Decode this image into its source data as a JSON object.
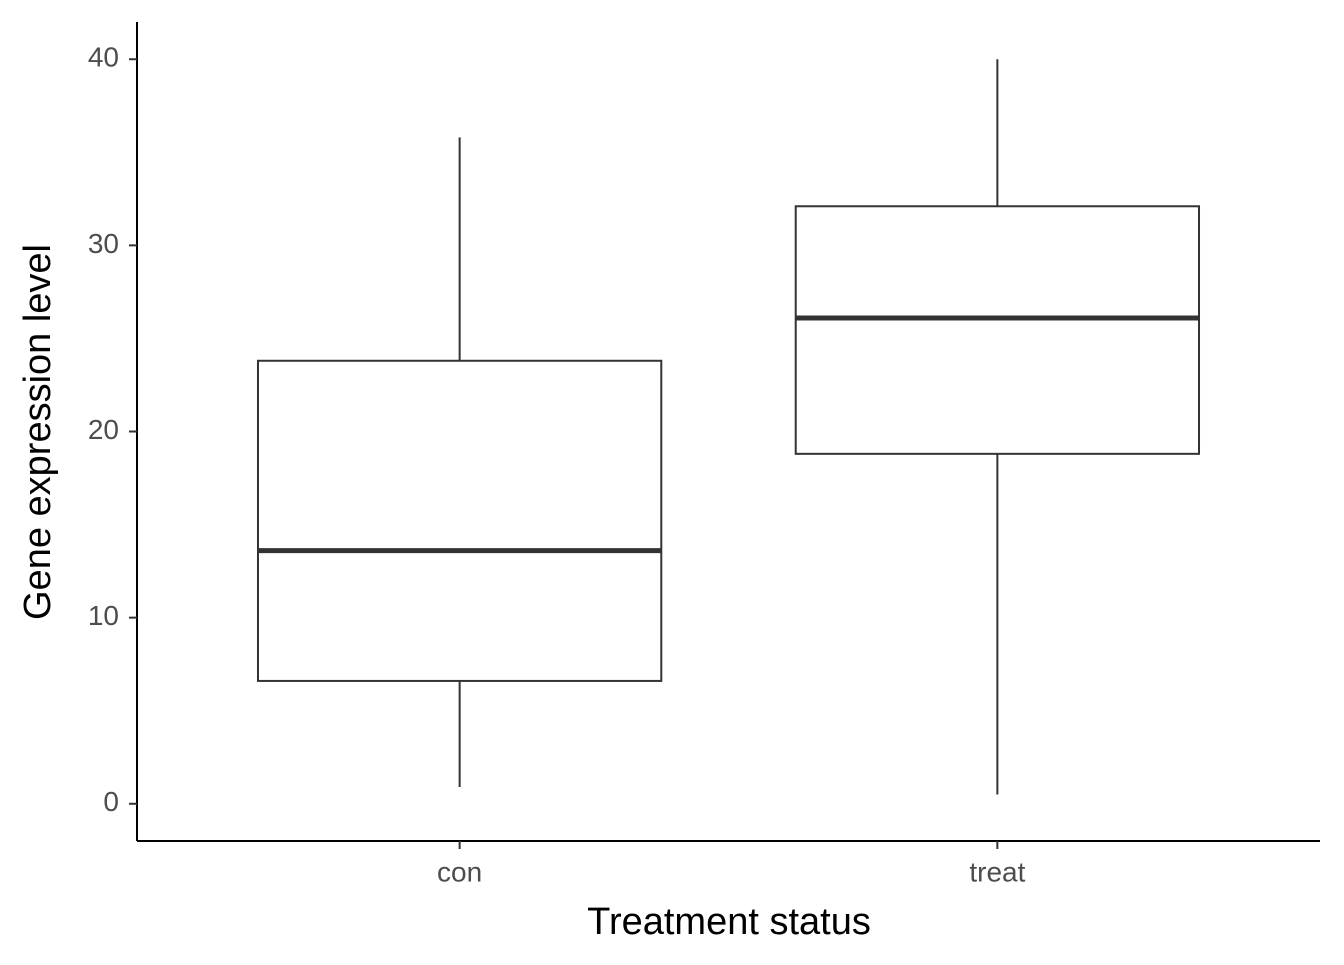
{
  "chart_data": {
    "type": "box",
    "x_label": "Treatment status",
    "y_label": "Gene expression level",
    "categories": [
      "con",
      "treat"
    ],
    "min": [
      0.9,
      0.5
    ],
    "q1": [
      6.6,
      18.8
    ],
    "median": [
      13.6,
      26.1
    ],
    "q3": [
      23.8,
      32.1
    ],
    "max": [
      35.8,
      40.0
    ],
    "color": "#333333",
    "ylim": [
      -2,
      42
    ],
    "yticks": [
      0,
      10,
      20,
      30,
      40
    ],
    "grid": false
  }
}
